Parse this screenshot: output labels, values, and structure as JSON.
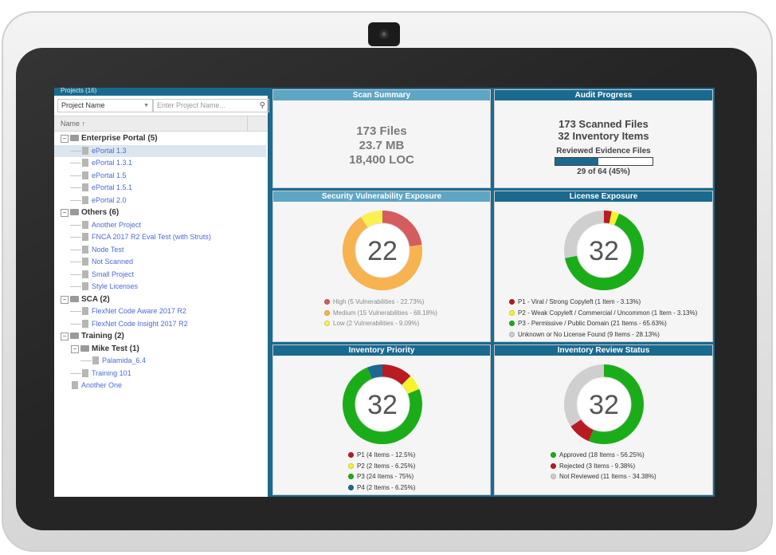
{
  "colors": {
    "red": "#b81c22",
    "yellow": "#f6f32b",
    "green": "#1aad19",
    "gray": "#cfcfcf",
    "sec_red": "#d45c5f",
    "sec_orange": "#f7b34f",
    "sec_yellow": "#faf14e",
    "blue": "#1a6a90",
    "header_teal": "#5fa5c4"
  },
  "projects": {
    "title": "Projects (16)",
    "filter_select": "Project Name",
    "filter_placeholder": "Enter Project Name...",
    "column_header": "Name ↑",
    "tree": [
      {
        "type": "group",
        "label": "Enterprise Portal (5)",
        "level": 0
      },
      {
        "type": "leaf",
        "label": "ePortal 1.3",
        "level": 1,
        "selected": true
      },
      {
        "type": "leaf",
        "label": "ePortal 1.3.1",
        "level": 1
      },
      {
        "type": "leaf",
        "label": "ePortal 1.5",
        "level": 1
      },
      {
        "type": "leaf",
        "label": "ePortal 1.5.1",
        "level": 1
      },
      {
        "type": "leaf",
        "label": "ePortal 2.0",
        "level": 1
      },
      {
        "type": "group",
        "label": "Others (6)",
        "level": 0
      },
      {
        "type": "leaf",
        "label": "Another Project",
        "level": 1
      },
      {
        "type": "leaf",
        "label": "FNCA 2017 R2 Eval Test (with Struts)",
        "level": 1
      },
      {
        "type": "leaf",
        "label": "Node Test",
        "level": 1
      },
      {
        "type": "leaf",
        "label": "Not Scanned",
        "level": 1
      },
      {
        "type": "leaf",
        "label": "Small Project",
        "level": 1
      },
      {
        "type": "leaf",
        "label": "Style Licenses",
        "level": 1
      },
      {
        "type": "group",
        "label": "SCA (2)",
        "level": 0
      },
      {
        "type": "leaf",
        "label": "FlexNet Code Aware 2017 R2",
        "level": 1
      },
      {
        "type": "leaf",
        "label": "FlexNet Code Insight 2017 R2",
        "level": 1
      },
      {
        "type": "group",
        "label": "Training (2)",
        "level": 0
      },
      {
        "type": "group",
        "label": "Mike Test (1)",
        "level": 1
      },
      {
        "type": "leaf",
        "label": "Palamida_6.4",
        "level": 2
      },
      {
        "type": "leaf",
        "label": "Training 101",
        "level": 1
      },
      {
        "type": "leaf",
        "label": "Another One",
        "level": 0
      }
    ]
  },
  "scan_summary": {
    "title": "Scan Summary",
    "files": "173 Files",
    "size": "23.7 MB",
    "loc": "18,400 LOC"
  },
  "audit_progress": {
    "title": "Audit Progress",
    "scanned": "173 Scanned Files",
    "inventory": "32 Inventory Items",
    "reviewed_label": "Reviewed Evidence Files",
    "progress_fraction": 0.45,
    "progress_text": "29 of 64 (45%)"
  },
  "security": {
    "title": "Security Vulnerability Exposure",
    "center": "22",
    "segments": [
      {
        "label": "High (5 Vulnerabilities - 22.73%)",
        "value": 22.73,
        "color": "#d45c5f"
      },
      {
        "label": "Medium (15 Vulnerabilities - 68.18%)",
        "value": 68.18,
        "color": "#f7b34f"
      },
      {
        "label": "Low (2 Vulnerabilities - 9.09%)",
        "value": 9.09,
        "color": "#faf14e"
      }
    ]
  },
  "license": {
    "title": "License Exposure",
    "center": "32",
    "segments": [
      {
        "label": "P1 - Viral / Strong Copyleft (1 Item - 3.13%)",
        "value": 3.13,
        "color": "#b81c22"
      },
      {
        "label": "P2 - Weak Copyleft / Commercial / Uncommon (1 Item - 3.13%)",
        "value": 3.13,
        "color": "#f6f32b"
      },
      {
        "label": "P3 - Permissive / Public Domain (21 Items - 65.63%)",
        "value": 65.63,
        "color": "#1aad19"
      },
      {
        "label": "Unknown or No License Found (9 Items - 28.13%)",
        "value": 28.13,
        "color": "#cfcfcf"
      }
    ]
  },
  "priority": {
    "title": "Inventory Priority",
    "center": "32",
    "segments": [
      {
        "label": "P1 (4 Items - 12.5%)",
        "value": 12.5,
        "color": "#b81c22"
      },
      {
        "label": "P2 (2 Items - 6.25%)",
        "value": 6.25,
        "color": "#f6f32b"
      },
      {
        "label": "P3 (24 Items - 75%)",
        "value": 75,
        "color": "#1aad19"
      },
      {
        "label": "P4 (2 Items - 6.25%)",
        "value": 6.25,
        "color": "#1a6a90"
      }
    ]
  },
  "review": {
    "title": "Inventory Review Status",
    "center": "32",
    "segments": [
      {
        "label": "Approved (18 Items - 56.25%)",
        "value": 56.25,
        "color": "#1aad19"
      },
      {
        "label": "Rejected (3 Items - 9.38%)",
        "value": 9.38,
        "color": "#b81c22"
      },
      {
        "label": "Not Reviewed (11 Items - 34.38%)",
        "value": 34.38,
        "color": "#cfcfcf"
      }
    ]
  }
}
